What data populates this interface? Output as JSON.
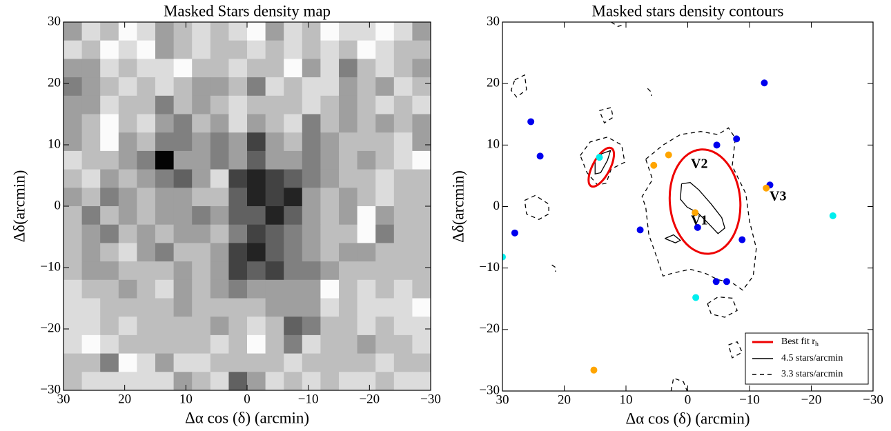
{
  "chart_data": [
    {
      "type": "heatmap",
      "title": "Masked Stars density map",
      "x_label": "Δα cos (δ) (arcmin)",
      "y_label": "Δδ(arcmin)",
      "xlim": [
        30,
        -30
      ],
      "ylim": [
        -30,
        30
      ],
      "xticks": [
        30,
        20,
        10,
        0,
        {
          "value": -10,
          "label": "−10"
        },
        {
          "value": -20,
          "label": "−20"
        },
        {
          "value": -30,
          "label": "−30"
        }
      ],
      "yticks": [
        {
          "value": -30,
          "label": "−30"
        },
        {
          "value": -20,
          "label": "−20"
        },
        {
          "value": -10,
          "label": "−10"
        },
        0,
        10,
        20,
        30
      ],
      "colormap": "gray_r",
      "values": [
        [
          4,
          2,
          3,
          1,
          2,
          4,
          3,
          2,
          3,
          2,
          1,
          4,
          2,
          3,
          1,
          2,
          2,
          1,
          2,
          4
        ],
        [
          2,
          3,
          1,
          2,
          1,
          4,
          3,
          2,
          3,
          3,
          2,
          3,
          2,
          3,
          2,
          3,
          1,
          2,
          3,
          3
        ],
        [
          4,
          4,
          2,
          3,
          2,
          2,
          1,
          3,
          3,
          2,
          3,
          3,
          1,
          4,
          2,
          5,
          3,
          2,
          3,
          4
        ],
        [
          5,
          4,
          3,
          2,
          3,
          2,
          3,
          4,
          4,
          3,
          5,
          2,
          3,
          2,
          2,
          4,
          3,
          4,
          2,
          3
        ],
        [
          4,
          4,
          2,
          3,
          3,
          5,
          3,
          4,
          3,
          2,
          3,
          3,
          3,
          2,
          3,
          4,
          3,
          2,
          3,
          2
        ],
        [
          4,
          3,
          1,
          3,
          2,
          4,
          5,
          3,
          4,
          2,
          4,
          3,
          2,
          5,
          3,
          4,
          3,
          4,
          3,
          4
        ],
        [
          4,
          3,
          1,
          4,
          3,
          5,
          5,
          4,
          5,
          4,
          7,
          4,
          3,
          5,
          4,
          3,
          3,
          3,
          2,
          4
        ],
        [
          2,
          3,
          3,
          4,
          5,
          9,
          4,
          4,
          5,
          4,
          6,
          4,
          4,
          5,
          4,
          3,
          4,
          3,
          2,
          1
        ],
        [
          3,
          2,
          4,
          3,
          4,
          5,
          6,
          4,
          2,
          7,
          8,
          7,
          6,
          5,
          4,
          3,
          3,
          2,
          3,
          3
        ],
        [
          4,
          3,
          5,
          4,
          3,
          4,
          4,
          3,
          3,
          6,
          8,
          7,
          8,
          4,
          3,
          4,
          3,
          2,
          3,
          3
        ],
        [
          3,
          5,
          3,
          4,
          3,
          4,
          4,
          5,
          4,
          6,
          6,
          8,
          6,
          4,
          3,
          4,
          1,
          4,
          3,
          3
        ],
        [
          3,
          4,
          5,
          3,
          4,
          3,
          4,
          4,
          3,
          5,
          7,
          6,
          5,
          4,
          3,
          3,
          1,
          5,
          3,
          3
        ],
        [
          3,
          4,
          3,
          2,
          4,
          5,
          3,
          3,
          4,
          7,
          8,
          6,
          5,
          4,
          3,
          4,
          4,
          3,
          3,
          3
        ],
        [
          3,
          4,
          4,
          3,
          3,
          3,
          4,
          3,
          4,
          7,
          6,
          7,
          5,
          5,
          4,
          3,
          3,
          3,
          3,
          3
        ],
        [
          2,
          3,
          3,
          4,
          3,
          2,
          4,
          3,
          4,
          5,
          4,
          4,
          4,
          4,
          1,
          3,
          2,
          3,
          2,
          3
        ],
        [
          2,
          2,
          3,
          3,
          3,
          3,
          4,
          3,
          3,
          3,
          3,
          4,
          4,
          4,
          2,
          3,
          2,
          2,
          2,
          1
        ],
        [
          2,
          2,
          3,
          2,
          3,
          3,
          3,
          3,
          4,
          3,
          2,
          3,
          6,
          5,
          3,
          3,
          2,
          3,
          2,
          2
        ],
        [
          2,
          1,
          2,
          3,
          3,
          3,
          3,
          3,
          2,
          3,
          1,
          3,
          5,
          2,
          3,
          3,
          4,
          3,
          3,
          2
        ],
        [
          3,
          3,
          5,
          1,
          2,
          4,
          2,
          2,
          3,
          3,
          3,
          3,
          2,
          3,
          3,
          3,
          3,
          2,
          3,
          3
        ],
        [
          3,
          2,
          2,
          2,
          2,
          2,
          4,
          3,
          2,
          6,
          4,
          2,
          3,
          2,
          3,
          2,
          2,
          3,
          2,
          2
        ]
      ]
    },
    {
      "type": "contour-scatter",
      "title": "Masked stars density contours",
      "x_label": "Δα cos (δ) (arcmin)",
      "y_label": "Δδ(arcmin)",
      "xlim": [
        30,
        -30
      ],
      "ylim": [
        -30,
        30
      ],
      "xticks": [
        30,
        20,
        10,
        0,
        {
          "value": -10,
          "label": "−10"
        },
        {
          "value": -20,
          "label": "−20"
        },
        {
          "value": -30,
          "label": "−30"
        }
      ],
      "yticks": [
        {
          "value": -30,
          "label": "−30"
        },
        {
          "value": -20,
          "label": "−20"
        },
        {
          "value": -10,
          "label": "−10"
        },
        0,
        10,
        20,
        30
      ],
      "legend": "lower right",
      "ellipses": {
        "name": {
          "text": "Best fit r",
          "subscript": "h"
        },
        "color": "#ee0000",
        "items": [
          {
            "cx": -2.8,
            "cy": 0.8,
            "rx": 5.7,
            "ry": 8.5,
            "angle": -5
          },
          {
            "cx": 14.0,
            "cy": 6.4,
            "rx": 1.4,
            "ry": 3.5,
            "angle": 28
          }
        ]
      },
      "contours": [
        {
          "name": "4.5 stars/arcmin",
          "style": "solid",
          "color": "#000000",
          "paths": [
            {
              "x": [
                1.0,
                -0.4,
                -1.8,
                -3.8,
                -5.5,
                -6.0,
                -4.9,
                -3.2,
                -1.6,
                0.1,
                1.2,
                1.0
              ],
              "y": [
                3.7,
                3.9,
                2.7,
                0.4,
                -1.8,
                -3.5,
                -4.4,
                -2.6,
                -1.0,
                -0.1,
                1.2,
                3.7
              ]
            },
            {
              "x": [
                3.7,
                2.3,
                1.2,
                2.0,
                3.7
              ],
              "y": [
                -5.2,
                -4.6,
                -5.5,
                -5.9,
                -5.2
              ]
            },
            {
              "x": [
                15.0,
                13.9,
                12.5,
                13.0,
                14.1,
                15.0,
                15.0
              ],
              "y": [
                7.5,
                8.6,
                9.1,
                7.5,
                5.5,
                5.3,
                7.5
              ]
            }
          ]
        },
        {
          "name": "3.3 stars/arcmin",
          "style": "dashed",
          "color": "#000000",
          "paths": [
            {
              "x": [
                6.8,
                4.0,
                1.2,
                -2.1,
                -4.9,
                -6.6,
                -7.7,
                -7.2,
                -9.4,
                -10.0,
                -11.1,
                -10.6,
                -8.9,
                -7.2,
                -4.9,
                -2.7,
                -0.4,
                2.3,
                4.0,
                5.1,
                6.3,
                6.8,
                7.4,
                5.7,
                6.8
              ],
              "y": [
                7.7,
                10.0,
                11.7,
                12.2,
                11.7,
                12.8,
                11.1,
                6.6,
                2.1,
                -2.4,
                -6.8,
                -11.3,
                -13.6,
                -12.4,
                -11.9,
                -10.8,
                -10.2,
                -10.8,
                -11.3,
                -8.0,
                -4.6,
                -0.1,
                1.6,
                4.4,
                7.7
              ]
            },
            {
              "x": [
                17.4,
                15.8,
                13.0,
                10.7,
                10.2,
                12.4,
                13.2,
                14.6,
                16.3,
                17.4
              ],
              "y": [
                8.3,
                10.5,
                11.3,
                10.0,
                7.2,
                6.1,
                3.8,
                3.5,
                5.5,
                8.3
              ]
            },
            {
              "x": [
                14.3,
                12.4,
                12.1,
                13.5,
                14.3
              ],
              "y": [
                15.6,
                16.1,
                14.5,
                13.6,
                15.6
              ]
            },
            {
              "x": [
                28.0,
                26.4,
                26.1,
                27.7,
                28.6,
                28.0
              ],
              "y": [
                20.6,
                21.4,
                19.0,
                17.8,
                18.9,
                20.6
              ]
            },
            {
              "x": [
                26.4,
                24.7,
                22.5,
                22.5,
                24.1,
                26.1,
                26.4
              ],
              "y": [
                1.0,
                1.8,
                0.4,
                -1.2,
                -2.1,
                -1.2,
                1.0
              ]
            },
            {
              "x": [
                -3.2,
                -4.9,
                -7.2,
                -8.0,
                -6.0,
                -3.8,
                -3.2
              ],
              "y": [
                -15.8,
                -14.7,
                -14.9,
                -16.9,
                -18.0,
                -17.5,
                -15.8
              ]
            },
            {
              "x": [
                -6.6,
                -8.0,
                -8.8,
                -7.2,
                -6.6
              ],
              "y": [
                -22.5,
                -22.0,
                -23.7,
                -24.6,
                -22.5
              ]
            },
            {
              "x": [
                2.7,
                2.3,
                0.7,
                0.1
              ],
              "y": [
                -30,
                -27.9,
                -28.5,
                -30
              ]
            },
            {
              "x": [
                12.4,
                11.3,
                10.2
              ],
              "y": [
                30,
                29.3,
                29.6
              ]
            },
            {
              "x": [
                6.5,
                5.9,
                5.9
              ],
              "y": [
                19.2,
                18.6,
                18.0
              ]
            },
            {
              "x": [
                22.0,
                21.4,
                21.4
              ],
              "y": [
                -9.5,
                -9.9,
                -10.6
              ]
            }
          ]
        }
      ],
      "points": [
        {
          "color": "#0000ee",
          "x": [
            -12.4,
            25.4,
            23.9,
            -4.7,
            -7.9,
            -13.3,
            -8.8,
            -1.6,
            7.7,
            28.0,
            -4.6,
            -6.3
          ],
          "y": [
            20.1,
            13.8,
            8.2,
            10.0,
            11.0,
            3.5,
            -5.4,
            -3.4,
            -3.8,
            -4.3,
            -12.2,
            -12.2
          ]
        },
        {
          "color": "#00eeee",
          "x": [
            14.3,
            -23.5,
            -1.3,
            30.0
          ],
          "y": [
            8.0,
            -1.5,
            -14.8,
            -8.2
          ]
        },
        {
          "color": "#ffa500",
          "x": [
            5.5,
            3.1,
            -1.2,
            -12.7,
            15.2
          ],
          "y": [
            6.7,
            8.4,
            -1.0,
            3.0,
            -26.6
          ]
        }
      ],
      "annotations": [
        "V1",
        "V2",
        "V3"
      ]
    }
  ]
}
